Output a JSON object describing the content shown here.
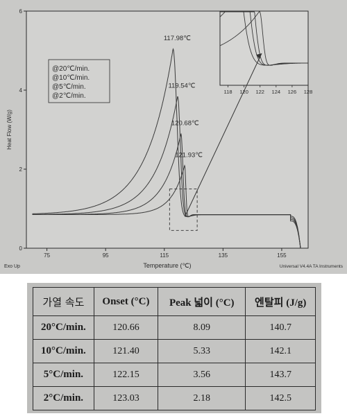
{
  "chart_data": [
    {
      "type": "line",
      "title": "",
      "xlabel": "Temperature (℃)",
      "ylabel": "Heat Flow (W/g)",
      "xlim": [
        68,
        164
      ],
      "ylim": [
        0,
        6
      ],
      "x_ticks": [
        "75",
        "95",
        "115",
        "135",
        "155"
      ],
      "y_ticks": [
        "0",
        "2",
        "4",
        "6"
      ],
      "corner_left": "Exo Up",
      "corner_right": "Universal V4.4A TA Instruments",
      "legend": [
        "@20℃/min.",
        "@10℃/min.",
        "@5℃/min.",
        "@2℃/min."
      ],
      "peak_labels": [
        "117.98℃",
        "119.54℃",
        "120.68℃",
        "121.93℃"
      ],
      "series": [
        {
          "name": "@20℃/min.",
          "peak_x": 117.98,
          "peak_y": 5.05,
          "onset_x": 120.66
        },
        {
          "name": "@10℃/min.",
          "peak_x": 119.54,
          "peak_y": 3.85,
          "onset_x": 121.4
        },
        {
          "name": "@5℃/min.",
          "peak_x": 120.68,
          "peak_y": 2.9,
          "onset_x": 122.15
        },
        {
          "name": "@2℃/min.",
          "peak_x": 121.93,
          "peak_y": 2.1,
          "onset_x": 123.03
        }
      ],
      "baseline_y": 0.85,
      "inset": {
        "x_ticks": [
          "118",
          "120",
          "122",
          "124",
          "126",
          "128"
        ],
        "xlim": [
          117,
          128
        ]
      }
    },
    {
      "type": "table",
      "headers": [
        "가열 속도",
        "Onset (°C)",
        "Peak 넓이 (°C)",
        "엔탈피 (J/g)"
      ],
      "rows": [
        [
          "20°C/min.",
          "120.66",
          "8.09",
          "140.7"
        ],
        [
          "10°C/min.",
          "121.40",
          "5.33",
          "142.1"
        ],
        [
          "5°C/min.",
          "122.15",
          "3.56",
          "143.7"
        ],
        [
          "2°C/min.",
          "123.03",
          "2.18",
          "142.5"
        ]
      ]
    }
  ]
}
